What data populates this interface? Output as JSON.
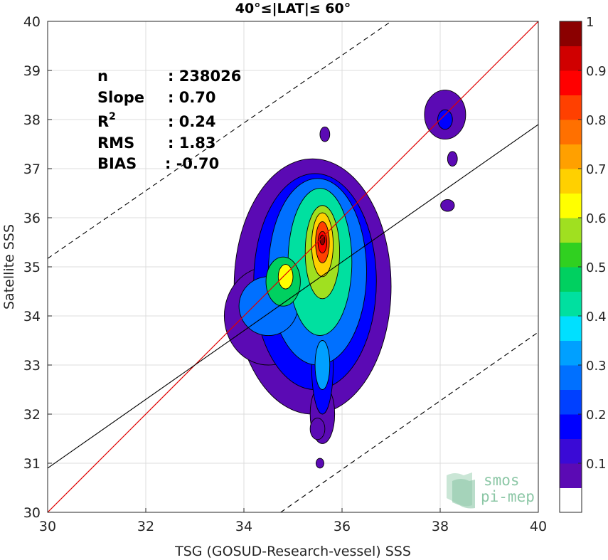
{
  "chart_data": {
    "type": "contour-density",
    "title": "40°≤|LAT|≤ 60°",
    "xlabel": "TSG (GOSUD-Research-vessel) SSS",
    "ylabel": "Satellite SSS",
    "xlim": [
      30,
      40
    ],
    "ylim": [
      30,
      40
    ],
    "xticks": [
      "30",
      "32",
      "34",
      "36",
      "38",
      "40"
    ],
    "yticks": [
      "30",
      "31",
      "32",
      "33",
      "34",
      "35",
      "36",
      "37",
      "38",
      "39",
      "40"
    ],
    "grid": true,
    "lines": {
      "identity": {
        "slope": 1,
        "intercept": 0,
        "color": "#e00000"
      },
      "fit": {
        "points": [
          [
            30,
            30.9
          ],
          [
            40,
            37.9
          ]
        ],
        "color": "#000000"
      },
      "rms_upper": {
        "points": [
          [
            30,
            35.17
          ],
          [
            37,
            40
          ]
        ],
        "color": "#000000",
        "dash": true
      },
      "rms_lower": {
        "points": [
          [
            34.75,
            30
          ],
          [
            40,
            33.67
          ]
        ],
        "color": "#000000",
        "dash": true
      }
    },
    "stats": {
      "n_label": "n",
      "n_value": ": 238026",
      "slope_label": "Slope",
      "slope_value": ": 0.70",
      "r2_label": "R",
      "r2_sup": "2",
      "r2_value": ": 0.24",
      "rms_label": "RMS",
      "rms_value": ": 1.83",
      "bias_label": "BIAS",
      "bias_value": ": -0.70"
    },
    "colorbar": {
      "range": [
        0,
        1
      ],
      "ticks": [
        "0.1",
        "0.2",
        "0.3",
        "0.4",
        "0.5",
        "0.6",
        "0.7",
        "0.8",
        "0.9",
        "1"
      ],
      "colors": [
        "#ffffff",
        "#5b0ab4",
        "#3a0ad6",
        "#0000ff",
        "#0040ff",
        "#0070ff",
        "#00a0ff",
        "#00e0ff",
        "#00e0a0",
        "#00d060",
        "#30d020",
        "#a0e020",
        "#ffff00",
        "#ffd000",
        "#ffa000",
        "#ff7000",
        "#ff4000",
        "#ff0000",
        "#d00000",
        "#8b0000"
      ]
    },
    "density_blobs": [
      {
        "cx": 35.4,
        "cy": 34.6,
        "rx": 1.6,
        "ry": 2.6,
        "level": 0.05
      },
      {
        "cx": 34.5,
        "cy": 34.0,
        "rx": 0.9,
        "ry": 1.0,
        "level": 0.05
      },
      {
        "cx": 35.6,
        "cy": 32.0,
        "rx": 0.25,
        "ry": 0.6,
        "level": 0.05
      },
      {
        "cx": 35.5,
        "cy": 31.7,
        "rx": 0.15,
        "ry": 0.22,
        "level": 0.05
      },
      {
        "cx": 35.55,
        "cy": 31.0,
        "rx": 0.08,
        "ry": 0.1,
        "level": 0.05
      },
      {
        "cx": 35.65,
        "cy": 37.7,
        "rx": 0.1,
        "ry": 0.15,
        "level": 0.05
      },
      {
        "cx": 38.1,
        "cy": 38.1,
        "rx": 0.42,
        "ry": 0.5,
        "level": 0.05
      },
      {
        "cx": 38.25,
        "cy": 37.2,
        "rx": 0.1,
        "ry": 0.15,
        "level": 0.05
      },
      {
        "cx": 38.15,
        "cy": 36.25,
        "rx": 0.14,
        "ry": 0.12,
        "level": 0.05
      },
      {
        "cx": 35.45,
        "cy": 34.7,
        "rx": 1.25,
        "ry": 2.2,
        "level": 0.15
      },
      {
        "cx": 35.6,
        "cy": 33.0,
        "rx": 0.22,
        "ry": 1.0,
        "level": 0.15
      },
      {
        "cx": 38.1,
        "cy": 38.0,
        "rx": 0.15,
        "ry": 0.2,
        "level": 0.15
      },
      {
        "cx": 35.5,
        "cy": 34.9,
        "rx": 1.0,
        "ry": 1.9,
        "level": 0.25
      },
      {
        "cx": 34.5,
        "cy": 34.2,
        "rx": 0.6,
        "ry": 0.6,
        "level": 0.25
      },
      {
        "cx": 35.6,
        "cy": 33.0,
        "rx": 0.15,
        "ry": 0.5,
        "level": 0.3
      },
      {
        "cx": 35.55,
        "cy": 35.1,
        "rx": 0.65,
        "ry": 1.5,
        "level": 0.4
      },
      {
        "cx": 34.8,
        "cy": 34.7,
        "rx": 0.35,
        "ry": 0.5,
        "level": 0.45
      },
      {
        "cx": 35.6,
        "cy": 35.3,
        "rx": 0.35,
        "ry": 0.95,
        "level": 0.55
      },
      {
        "cx": 34.85,
        "cy": 34.8,
        "rx": 0.15,
        "ry": 0.25,
        "level": 0.6
      },
      {
        "cx": 35.6,
        "cy": 35.45,
        "rx": 0.22,
        "ry": 0.65,
        "level": 0.68
      },
      {
        "cx": 35.6,
        "cy": 35.5,
        "rx": 0.14,
        "ry": 0.42,
        "level": 0.8
      },
      {
        "cx": 35.6,
        "cy": 35.5,
        "rx": 0.09,
        "ry": 0.22,
        "level": 0.88
      },
      {
        "cx": 35.6,
        "cy": 35.55,
        "rx": 0.05,
        "ry": 0.1,
        "level": 0.95
      }
    ]
  },
  "logo": {
    "line1": "smos",
    "line2": "pi-mep"
  }
}
